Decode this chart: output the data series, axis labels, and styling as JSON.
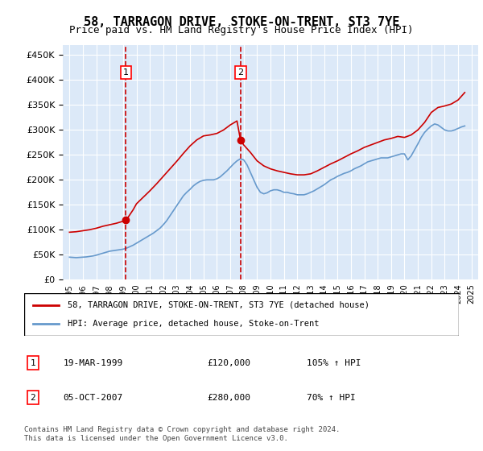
{
  "title": "58, TARRAGON DRIVE, STOKE-ON-TRENT, ST3 7YE",
  "subtitle": "Price paid vs. HM Land Registry's House Price Index (HPI)",
  "legend_property": "58, TARRAGON DRIVE, STOKE-ON-TRENT, ST3 7YE (detached house)",
  "legend_hpi": "HPI: Average price, detached house, Stoke-on-Trent",
  "footer": "Contains HM Land Registry data © Crown copyright and database right 2024.\nThis data is licensed under the Open Government Licence v3.0.",
  "transaction1": {
    "label": "1",
    "date": "19-MAR-1999",
    "price": "£120,000",
    "hpi": "105% ↑ HPI",
    "year": 1999.21
  },
  "transaction2": {
    "label": "2",
    "date": "05-OCT-2007",
    "price": "£280,000",
    "hpi": "70% ↑ HPI",
    "year": 2007.76
  },
  "price1": 120000,
  "price2": 280000,
  "ylim": [
    0,
    470000
  ],
  "yticks": [
    0,
    50000,
    100000,
    150000,
    200000,
    250000,
    300000,
    350000,
    400000,
    450000
  ],
  "xlim_start": 1994.5,
  "xlim_end": 2025.5,
  "background_color": "#dce9f8",
  "plot_bg": "#dce9f8",
  "grid_color": "#ffffff",
  "red_line_color": "#cc0000",
  "blue_line_color": "#6699cc",
  "dashed_line_color": "#cc0000",
  "hpi_data": {
    "years": [
      1995.0,
      1995.25,
      1995.5,
      1995.75,
      1996.0,
      1996.25,
      1996.5,
      1996.75,
      1997.0,
      1997.25,
      1997.5,
      1997.75,
      1998.0,
      1998.25,
      1998.5,
      1998.75,
      1999.0,
      1999.25,
      1999.5,
      1999.75,
      2000.0,
      2000.25,
      2000.5,
      2000.75,
      2001.0,
      2001.25,
      2001.5,
      2001.75,
      2002.0,
      2002.25,
      2002.5,
      2002.75,
      2003.0,
      2003.25,
      2003.5,
      2003.75,
      2004.0,
      2004.25,
      2004.5,
      2004.75,
      2005.0,
      2005.25,
      2005.5,
      2005.75,
      2006.0,
      2006.25,
      2006.5,
      2006.75,
      2007.0,
      2007.25,
      2007.5,
      2007.75,
      2008.0,
      2008.25,
      2008.5,
      2008.75,
      2009.0,
      2009.25,
      2009.5,
      2009.75,
      2010.0,
      2010.25,
      2010.5,
      2010.75,
      2011.0,
      2011.25,
      2011.5,
      2011.75,
      2012.0,
      2012.25,
      2012.5,
      2012.75,
      2013.0,
      2013.25,
      2013.5,
      2013.75,
      2014.0,
      2014.25,
      2014.5,
      2014.75,
      2015.0,
      2015.25,
      2015.5,
      2015.75,
      2016.0,
      2016.25,
      2016.5,
      2016.75,
      2017.0,
      2017.25,
      2017.5,
      2017.75,
      2018.0,
      2018.25,
      2018.5,
      2018.75,
      2019.0,
      2019.25,
      2019.5,
      2019.75,
      2020.0,
      2020.25,
      2020.5,
      2020.75,
      2021.0,
      2021.25,
      2021.5,
      2021.75,
      2022.0,
      2022.25,
      2022.5,
      2022.75,
      2023.0,
      2023.25,
      2023.5,
      2023.75,
      2024.0,
      2024.25,
      2024.5
    ],
    "values": [
      45000,
      44500,
      44000,
      44500,
      45000,
      45500,
      46500,
      47500,
      49000,
      51000,
      53000,
      55000,
      57000,
      58000,
      59000,
      60000,
      61000,
      63000,
      66000,
      69000,
      73000,
      77000,
      81000,
      85000,
      89000,
      93000,
      98000,
      103000,
      110000,
      118000,
      128000,
      138000,
      148000,
      158000,
      168000,
      175000,
      181000,
      188000,
      193000,
      197000,
      199000,
      200000,
      200000,
      200000,
      202000,
      206000,
      212000,
      218000,
      225000,
      232000,
      238000,
      242000,
      240000,
      230000,
      215000,
      200000,
      185000,
      175000,
      172000,
      174000,
      178000,
      180000,
      180000,
      178000,
      175000,
      175000,
      173000,
      172000,
      170000,
      170000,
      170000,
      172000,
      175000,
      178000,
      182000,
      186000,
      190000,
      195000,
      200000,
      203000,
      207000,
      210000,
      213000,
      215000,
      218000,
      222000,
      225000,
      228000,
      232000,
      236000,
      238000,
      240000,
      242000,
      244000,
      244000,
      244000,
      246000,
      248000,
      250000,
      252000,
      252000,
      240000,
      248000,
      260000,
      272000,
      285000,
      295000,
      302000,
      308000,
      312000,
      310000,
      305000,
      300000,
      298000,
      298000,
      300000,
      303000,
      306000,
      308000
    ]
  },
  "property_data": {
    "years": [
      1995.0,
      1995.5,
      1996.0,
      1996.5,
      1997.0,
      1997.5,
      1998.0,
      1998.5,
      1999.0,
      1999.25,
      1999.5,
      1999.75,
      2000.0,
      2000.5,
      2001.0,
      2001.5,
      2002.0,
      2002.5,
      2003.0,
      2003.5,
      2004.0,
      2004.5,
      2005.0,
      2005.5,
      2006.0,
      2006.5,
      2007.0,
      2007.5,
      2007.76,
      2008.0,
      2008.5,
      2009.0,
      2009.5,
      2010.0,
      2010.5,
      2011.0,
      2011.5,
      2012.0,
      2012.5,
      2013.0,
      2013.5,
      2014.0,
      2014.5,
      2015.0,
      2015.5,
      2016.0,
      2016.5,
      2017.0,
      2017.5,
      2018.0,
      2018.5,
      2019.0,
      2019.5,
      2020.0,
      2020.5,
      2021.0,
      2021.5,
      2022.0,
      2022.5,
      2023.0,
      2023.5,
      2024.0,
      2024.5
    ],
    "values": [
      95000,
      96000,
      98000,
      100000,
      103000,
      107000,
      110000,
      113000,
      117000,
      120000,
      130000,
      140000,
      152000,
      165000,
      178000,
      192000,
      207000,
      222000,
      237000,
      253000,
      268000,
      280000,
      288000,
      290000,
      293000,
      300000,
      310000,
      318000,
      280000,
      270000,
      255000,
      238000,
      228000,
      222000,
      218000,
      215000,
      212000,
      210000,
      210000,
      212000,
      218000,
      225000,
      232000,
      238000,
      245000,
      252000,
      258000,
      265000,
      270000,
      275000,
      280000,
      283000,
      287000,
      285000,
      290000,
      300000,
      315000,
      335000,
      345000,
      348000,
      352000,
      360000,
      375000
    ]
  }
}
